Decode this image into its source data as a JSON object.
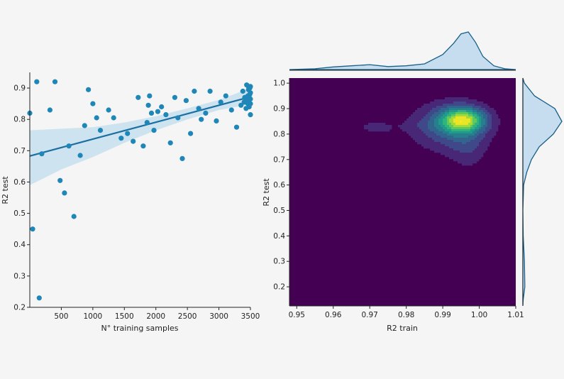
{
  "colors": {
    "background": "#f5f5f5",
    "scatter_point": "#1f86b8",
    "regression_line": "#1a6fa0",
    "confidence_band": "#bfdcee",
    "kde_bg": "#440154",
    "kde_stroke": "#1a5f87",
    "kde_fill": "#c6ddef",
    "axis": "#222222"
  },
  "chart_data": [
    {
      "type": "scatter",
      "name": "regression-plot",
      "xlabel": "N° training samples",
      "ylabel": "R2 test",
      "xlim": [
        0,
        3500
      ],
      "ylim": [
        0.2,
        0.95
      ],
      "xticks": [
        500,
        1000,
        1500,
        2000,
        2500,
        3000,
        3500
      ],
      "yticks": [
        0.2,
        0.3,
        0.4,
        0.5,
        0.6,
        0.7,
        0.8,
        0.9
      ],
      "grid": false,
      "points": [
        [
          0,
          0.82
        ],
        [
          45,
          0.45
        ],
        [
          110,
          0.92
        ],
        [
          150,
          0.23
        ],
        [
          190,
          0.69
        ],
        [
          320,
          0.83
        ],
        [
          400,
          0.92
        ],
        [
          480,
          0.605
        ],
        [
          550,
          0.565
        ],
        [
          620,
          0.715
        ],
        [
          700,
          0.49
        ],
        [
          800,
          0.685
        ],
        [
          870,
          0.78
        ],
        [
          930,
          0.895
        ],
        [
          1000,
          0.85
        ],
        [
          1060,
          0.805
        ],
        [
          1120,
          0.765
        ],
        [
          1250,
          0.83
        ],
        [
          1330,
          0.805
        ],
        [
          1450,
          0.74
        ],
        [
          1550,
          0.755
        ],
        [
          1640,
          0.73
        ],
        [
          1720,
          0.87
        ],
        [
          1800,
          0.715
        ],
        [
          1860,
          0.79
        ],
        [
          1880,
          0.845
        ],
        [
          1900,
          0.875
        ],
        [
          1930,
          0.82
        ],
        [
          1970,
          0.765
        ],
        [
          2030,
          0.825
        ],
        [
          2090,
          0.84
        ],
        [
          2160,
          0.815
        ],
        [
          2230,
          0.725
        ],
        [
          2300,
          0.87
        ],
        [
          2350,
          0.805
        ],
        [
          2420,
          0.675
        ],
        [
          2480,
          0.86
        ],
        [
          2550,
          0.755
        ],
        [
          2610,
          0.89
        ],
        [
          2680,
          0.835
        ],
        [
          2720,
          0.8
        ],
        [
          2790,
          0.82
        ],
        [
          2860,
          0.89
        ],
        [
          2960,
          0.795
        ],
        [
          3030,
          0.855
        ],
        [
          3110,
          0.875
        ],
        [
          3200,
          0.83
        ],
        [
          3280,
          0.775
        ],
        [
          3350,
          0.845
        ],
        [
          3380,
          0.89
        ],
        [
          3400,
          0.855
        ],
        [
          3420,
          0.87
        ],
        [
          3440,
          0.91
        ],
        [
          3450,
          0.86
        ],
        [
          3460,
          0.875
        ],
        [
          3470,
          0.895
        ],
        [
          3480,
          0.84
        ],
        [
          3480,
          0.87
        ],
        [
          3490,
          0.9
        ],
        [
          3500,
          0.815
        ],
        [
          3500,
          0.85
        ],
        [
          3500,
          0.885
        ],
        [
          3500,
          0.905
        ],
        [
          3500,
          0.865
        ],
        [
          3430,
          0.835
        ],
        [
          3460,
          0.85
        ],
        [
          3490,
          0.88
        ],
        [
          3470,
          0.905
        ],
        [
          3410,
          0.87
        ]
      ],
      "regression": {
        "x": [
          0,
          3500
        ],
        "y": [
          0.683,
          0.872
        ]
      },
      "confidence_band": {
        "x": [
          0,
          500,
          1000,
          1500,
          2000,
          2500,
          3000,
          3500
        ],
        "upper": [
          0.765,
          0.77,
          0.775,
          0.79,
          0.81,
          0.835,
          0.862,
          0.9
        ],
        "lower": [
          0.59,
          0.64,
          0.68,
          0.725,
          0.765,
          0.8,
          0.83,
          0.848
        ]
      }
    },
    {
      "type": "heatmap",
      "name": "kde-joint-plot",
      "xlabel": "R2 train",
      "ylabel": "R2 test",
      "xlim": [
        0.948,
        1.01
      ],
      "ylim": [
        0.125,
        1.02
      ],
      "xticks": [
        0.95,
        0.96,
        0.97,
        0.98,
        0.99,
        1.0,
        1.01
      ],
      "xtick_labels": [
        "0.95",
        "0.96",
        "0.97",
        "0.98",
        "0.99",
        "1.00",
        "1.01"
      ],
      "yticks": [
        0.2,
        0.3,
        0.4,
        0.5,
        0.6,
        0.7,
        0.8,
        0.9,
        1.0
      ],
      "ytick_labels": [
        "0.2",
        "0.3",
        "0.4",
        "0.5",
        "0.6",
        "0.7",
        "0.8",
        "0.9",
        "1.0"
      ],
      "colormap": "viridis",
      "contour_levels": 10,
      "kde_components": [
        {
          "mx": 0.9955,
          "my": 0.855,
          "sx": 0.0042,
          "sy": 0.034,
          "w": 1.0
        },
        {
          "mx": 0.992,
          "my": 0.83,
          "sx": 0.0075,
          "sy": 0.07,
          "w": 0.42
        },
        {
          "mx": 0.997,
          "my": 0.74,
          "sx": 0.0035,
          "sy": 0.06,
          "w": 0.17
        },
        {
          "mx": 0.9975,
          "my": 0.62,
          "sx": 0.0016,
          "sy": 0.03,
          "w": 0.06
        },
        {
          "mx": 0.9715,
          "my": 0.825,
          "sx": 0.0042,
          "sy": 0.025,
          "w": 0.16
        },
        {
          "mx": 0.962,
          "my": 0.85,
          "sx": 0.0045,
          "sy": 0.02,
          "w": 0.07
        },
        {
          "mx": 0.985,
          "my": 0.835,
          "sx": 0.0045,
          "sy": 0.02,
          "w": 0.06
        }
      ],
      "marginal_x": {
        "x": [
          0.948,
          0.955,
          0.96,
          0.965,
          0.97,
          0.975,
          0.98,
          0.985,
          0.99,
          0.993,
          0.995,
          0.997,
          0.999,
          1.001,
          1.004,
          1.007,
          1.01
        ],
        "density": [
          0.0,
          0.02,
          0.07,
          0.1,
          0.13,
          0.08,
          0.1,
          0.15,
          0.4,
          0.7,
          0.95,
          1.0,
          0.72,
          0.35,
          0.1,
          0.02,
          0.0
        ]
      },
      "marginal_y": {
        "y": [
          0.125,
          0.15,
          0.2,
          0.3,
          0.4,
          0.5,
          0.6,
          0.65,
          0.7,
          0.75,
          0.8,
          0.85,
          0.9,
          0.95,
          1.0,
          1.02
        ],
        "density": [
          0.0,
          0.01,
          0.05,
          0.04,
          0.01,
          0.0,
          0.02,
          0.1,
          0.22,
          0.42,
          0.78,
          1.0,
          0.82,
          0.3,
          0.04,
          0.0
        ]
      }
    }
  ]
}
